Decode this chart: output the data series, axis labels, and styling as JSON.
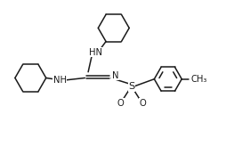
{
  "bg_color": "#ffffff",
  "line_color": "#1a1a1a",
  "line_width": 1.1,
  "font_size": 7.2,
  "fig_width": 2.63,
  "fig_height": 1.65,
  "dpi": 100,
  "xlim": [
    0,
    10.5
  ],
  "ylim": [
    0,
    6.5
  ]
}
